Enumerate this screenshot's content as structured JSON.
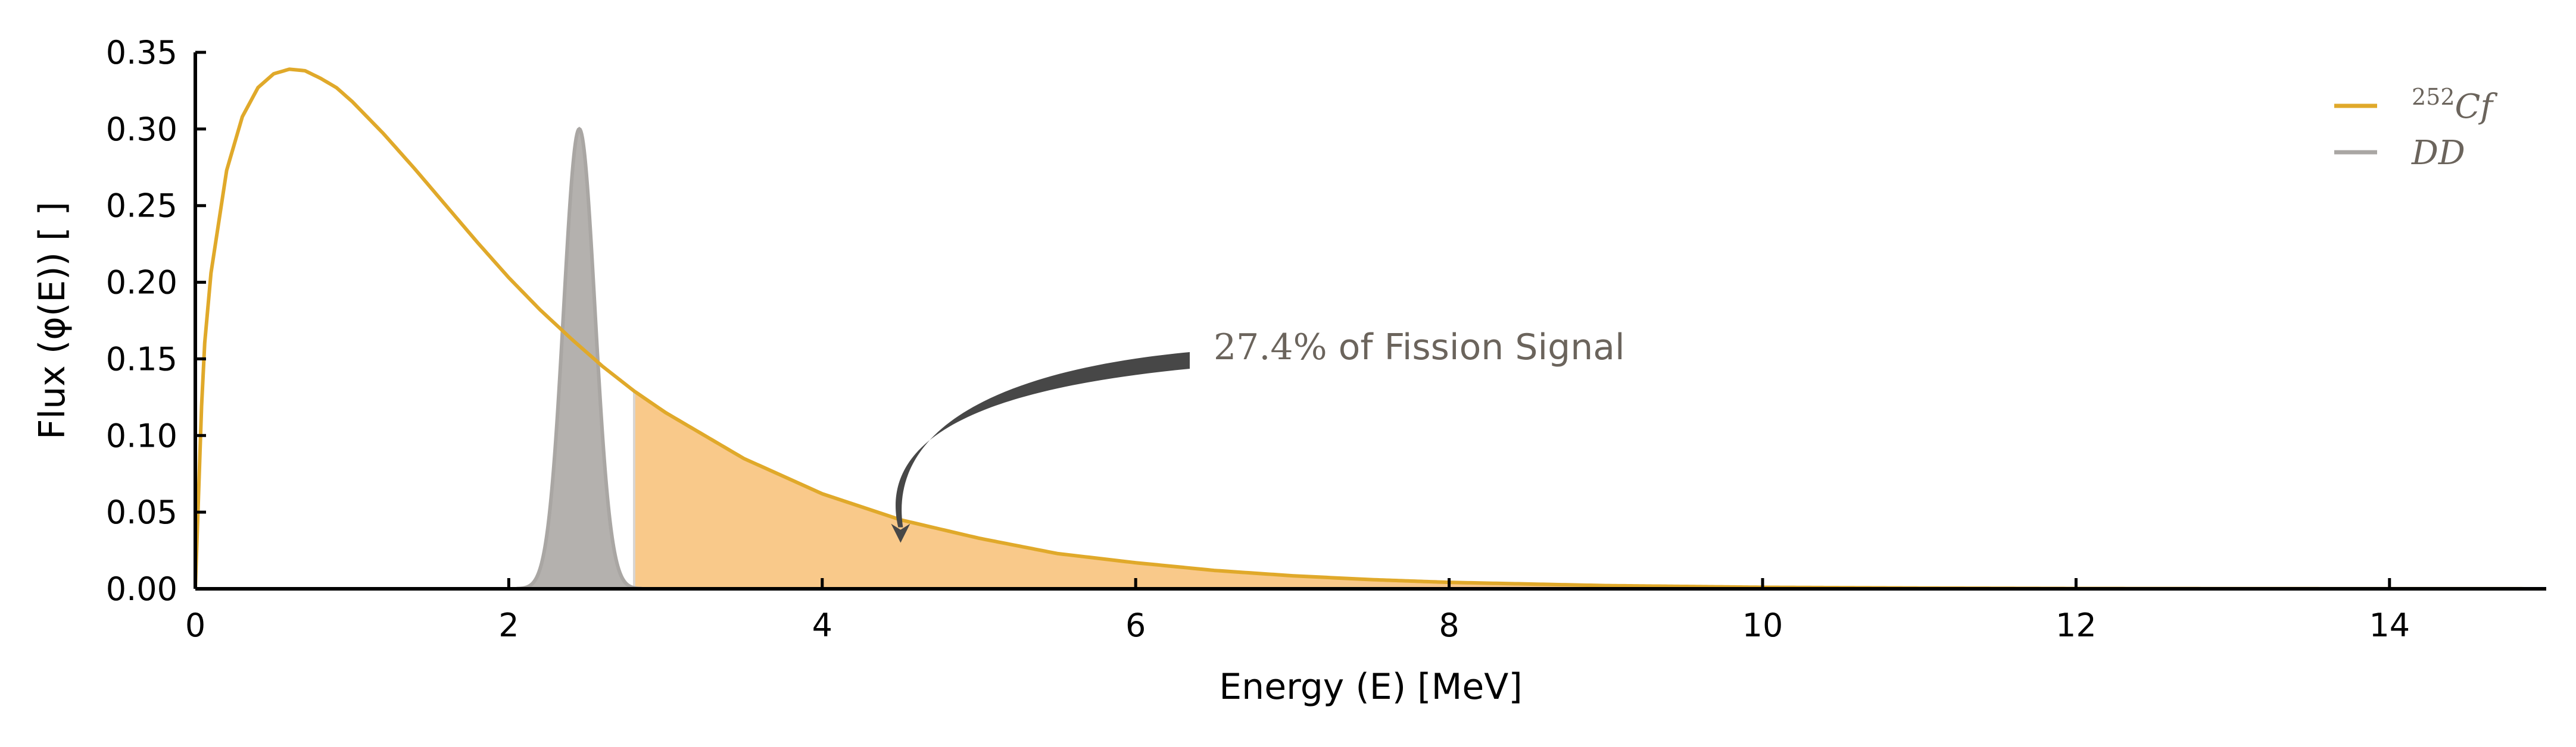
{
  "chart_data": {
    "type": "line",
    "xlabel": "Energy (E) [MeV]",
    "ylabel": "Flux (φ(E)) [ ]",
    "xlim": [
      0,
      15
    ],
    "ylim": [
      0,
      0.35
    ],
    "x_ticks": [
      0,
      2,
      4,
      6,
      8,
      10,
      12,
      14
    ],
    "y_ticks": [
      0.0,
      0.05,
      0.1,
      0.15,
      0.2,
      0.25,
      0.3,
      0.35
    ],
    "x_tick_labels": [
      "0",
      "2",
      "4",
      "6",
      "8",
      "10",
      "12",
      "14"
    ],
    "y_tick_labels": [
      "0.00",
      "0.05",
      "0.10",
      "0.15",
      "0.20",
      "0.25",
      "0.30",
      "0.35"
    ],
    "grid": false,
    "legend_position": "top-right",
    "series": [
      {
        "name": "252Cf",
        "legend_sup": "252",
        "legend_main": "Cf",
        "color": "#E0A92A",
        "x": [
          0,
          0.05,
          0.1,
          0.2,
          0.3,
          0.4,
          0.5,
          0.6,
          0.7,
          0.8,
          0.9,
          1.0,
          1.2,
          1.4,
          1.6,
          1.8,
          2.0,
          2.2,
          2.4,
          2.6,
          2.8,
          3.0,
          3.5,
          4.0,
          4.5,
          5.0,
          5.5,
          6.0,
          6.5,
          7.0,
          7.5,
          8.0,
          9.0,
          10.0,
          11.0,
          12.0,
          13.0,
          14.0,
          15.0
        ],
        "y": [
          0.0,
          0.149,
          0.206,
          0.273,
          0.308,
          0.327,
          0.336,
          0.339,
          0.338,
          0.333,
          0.327,
          0.318,
          0.297,
          0.274,
          0.25,
          0.226,
          0.203,
          0.182,
          0.163,
          0.145,
          0.129,
          0.115,
          0.085,
          0.062,
          0.045,
          0.033,
          0.023,
          0.017,
          0.012,
          0.0085,
          0.006,
          0.0042,
          0.0021,
          0.001,
          0.0005,
          0.0002,
          0.0001,
          5e-05,
          2e-05
        ]
      },
      {
        "name": "DD",
        "legend_main": "DD",
        "color": "#A9A6A3",
        "fill_color": "#B4B1AE",
        "type": "peak",
        "center": 2.45,
        "sigma": 0.1,
        "peak": 0.3
      }
    ],
    "shaded_region": {
      "series": "252Cf",
      "x_start": 2.8,
      "x_end": 15,
      "color": "#F9C98A"
    },
    "annotation": {
      "text_value": "27.4%",
      "text_rest": " of Fission Signal",
      "text_color": "#6B645C",
      "text_anchor_x": 6.5,
      "text_anchor_y": 0.155,
      "arrow_tip_x": 4.5,
      "arrow_tip_y": 0.03
    }
  }
}
